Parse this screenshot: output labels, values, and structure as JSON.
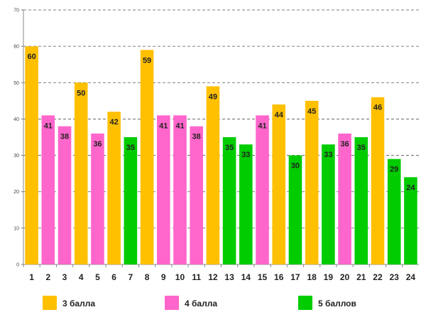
{
  "chart_data": {
    "type": "bar",
    "title": "",
    "xlabel": "",
    "ylabel": "",
    "ylim": [
      0,
      70
    ],
    "yticks": [
      0,
      10,
      20,
      30,
      40,
      50,
      60,
      70
    ],
    "grid": true,
    "legend_position": "bottom",
    "categories": [
      "1",
      "2",
      "3",
      "4",
      "5",
      "6",
      "7",
      "8",
      "9",
      "10",
      "11",
      "12",
      "13",
      "14",
      "15",
      "16",
      "17",
      "18",
      "19",
      "20",
      "21",
      "22",
      "23",
      "24"
    ],
    "values": [
      60,
      41,
      38,
      50,
      36,
      42,
      35,
      59,
      41,
      41,
      38,
      49,
      35,
      33,
      41,
      44,
      30,
      45,
      33,
      36,
      35,
      46,
      29,
      24
    ],
    "groups": [
      "g3",
      "g4",
      "g4",
      "g3",
      "g4",
      "g3",
      "g5",
      "g3",
      "g4",
      "g4",
      "g4",
      "g3",
      "g5",
      "g5",
      "g4",
      "g3",
      "g5",
      "g3",
      "g5",
      "g4",
      "g5",
      "g3",
      "g5",
      "g5"
    ],
    "series": [
      {
        "id": "g3",
        "name": "3 балла",
        "color": "#FFC000"
      },
      {
        "id": "g4",
        "name": "4 балла",
        "color": "#FF66CC"
      },
      {
        "id": "g5",
        "name": "5 баллов",
        "color": "#00CC00"
      }
    ]
  }
}
